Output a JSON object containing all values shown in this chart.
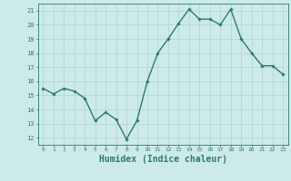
{
  "x": [
    0,
    1,
    2,
    3,
    4,
    5,
    6,
    7,
    8,
    9,
    10,
    11,
    12,
    13,
    14,
    15,
    16,
    17,
    18,
    19,
    20,
    21,
    22,
    23
  ],
  "y": [
    15.5,
    15.1,
    15.5,
    15.3,
    14.8,
    13.2,
    13.8,
    13.3,
    11.9,
    13.2,
    16.0,
    18.0,
    19.0,
    20.1,
    21.1,
    20.4,
    20.4,
    20.0,
    21.1,
    19.0,
    18.0,
    17.1,
    17.1,
    16.5
  ],
  "line_color": "#2d7a6e",
  "marker": "D",
  "marker_size": 1.8,
  "line_width": 1.0,
  "background_color": "#cdeaea",
  "grid_color": "#b8d4d4",
  "xlabel": "Humidex (Indice chaleur)",
  "xlabel_fontsize": 7,
  "ylabel_ticks": [
    12,
    13,
    14,
    15,
    16,
    17,
    18,
    19,
    20,
    21
  ],
  "xtick_labels": [
    "0",
    "1",
    "2",
    "3",
    "4",
    "5",
    "6",
    "7",
    "8",
    "9",
    "10",
    "11",
    "12",
    "13",
    "14",
    "15",
    "16",
    "17",
    "18",
    "19",
    "20",
    "21",
    "22",
    "23"
  ],
  "ylim": [
    11.5,
    21.5
  ],
  "xlim": [
    -0.5,
    23.5
  ]
}
